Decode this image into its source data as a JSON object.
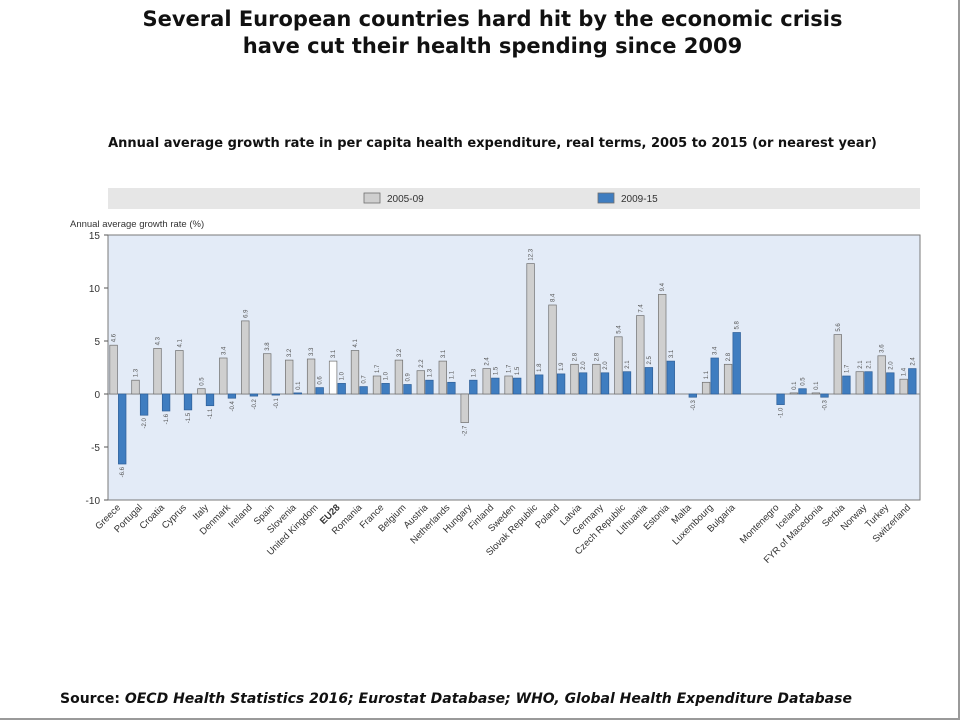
{
  "title": {
    "line1": "Several European countries hard hit by the economic crisis",
    "line2": "have cut their health spending since 2009"
  },
  "subtitle": "Annual average growth rate in per capita health expenditure, real terms, 2005 to 2015 (or nearest year)",
  "source": {
    "label": "Source:",
    "text": "OECD Health Statistics 2016; Eurostat Database; WHO, Global Health Expenditure Database"
  },
  "colors": {
    "series_2005_09": "#cfcfcf",
    "series_2009_15": "#3f7dc0",
    "eu28_2005_09": "#ffffff",
    "plot_bg": "#e3ebf7",
    "legend_bg": "#e6e6e6"
  },
  "chart_data": {
    "type": "bar",
    "ylabel": "Annual average growth rate (%)",
    "ylim": [
      -10,
      15
    ],
    "yticks": [
      -10,
      -5,
      0,
      5,
      10,
      15
    ],
    "grid": false,
    "legend_position": "top",
    "highlighted_category": "EU28",
    "categories": [
      "Greece",
      "Portugal",
      "Croatia",
      "Cyprus",
      "Italy",
      "Denmark",
      "Ireland",
      "Spain",
      "Slovenia",
      "United Kingdom",
      "EU28",
      "Romania",
      "France",
      "Belgium",
      "Austria",
      "Netherlands",
      "Hungary",
      "Finland",
      "Sweden",
      "Slovak Republic",
      "Poland",
      "Latvia",
      "Germany",
      "Czech Republic",
      "Lithuania",
      "Estonia",
      "Malta",
      "Luxembourg",
      "Bulgaria",
      "",
      "Montenegro",
      "Iceland",
      "FYR of Macedonia",
      "Serbia",
      "Norway",
      "Turkey",
      "Switzerland"
    ],
    "series": [
      {
        "name": "2005-09",
        "values": [
          4.6,
          1.3,
          4.3,
          4.1,
          0.5,
          3.4,
          6.9,
          3.8,
          3.2,
          3.3,
          3.1,
          4.1,
          1.7,
          3.2,
          2.2,
          3.1,
          -2.7,
          2.4,
          1.7,
          12.3,
          8.4,
          2.8,
          2.8,
          5.4,
          7.4,
          9.4,
          null,
          1.1,
          2.8,
          null,
          null,
          0.1,
          0.1,
          5.6,
          2.1,
          3.6,
          1.4
        ],
        "labels": [
          "4.6",
          "1.3",
          "4.3",
          "4.1",
          "0.5",
          "3.4",
          "6.9",
          "3.8",
          "3.2",
          "3.3",
          "3.1",
          "4.1",
          "1.7",
          "3.2",
          "2.2",
          "3.1",
          "-2.7",
          "2.4",
          "1.7",
          "12.3",
          "8.4",
          "2.8",
          "2.8",
          "5.4",
          "7.4",
          "9.4",
          "",
          "1.1",
          "2.8",
          "",
          "",
          "0.1",
          "0.1",
          "5.6",
          "2.1",
          "3.6",
          "1.4"
        ]
      },
      {
        "name": "2009-15",
        "values": [
          -6.6,
          -2.0,
          -1.6,
          -1.5,
          -1.1,
          -0.4,
          -0.2,
          -0.1,
          0.1,
          0.6,
          1.0,
          0.7,
          1.0,
          0.9,
          1.3,
          1.1,
          1.3,
          1.5,
          1.5,
          1.8,
          1.9,
          2.0,
          2.0,
          2.1,
          2.5,
          3.1,
          -0.3,
          3.4,
          5.8,
          null,
          -1.0,
          0.5,
          -0.3,
          1.7,
          2.1,
          2.0,
          2.4
        ],
        "labels": [
          "-6.6",
          "-2.0",
          "-1.6",
          "-1.5",
          "-1.1",
          "-0.4",
          "-0.2",
          "-0.1",
          "0.1",
          "0.6",
          "1.0",
          "0.7",
          "1.0",
          "0.9",
          "1.3",
          "1.1",
          "1.3",
          "1.5",
          "1.5",
          "1.8",
          "1.9",
          "2.0",
          "2.0",
          "2.1",
          "2.5",
          "3.1",
          "-0.3",
          "3.4",
          "5.8",
          "",
          "-1.0",
          "0.5",
          "-0.3",
          "1.7",
          "2.1",
          "2.0",
          "2.4"
        ]
      }
    ]
  }
}
